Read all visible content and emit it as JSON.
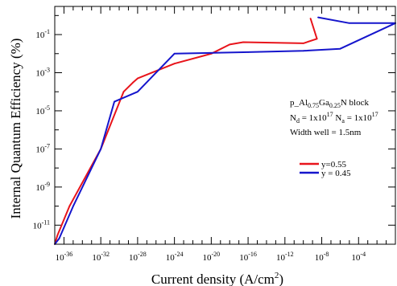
{
  "chart_data": {
    "type": "line",
    "title": "",
    "xlabel": "Current density (A/cm",
    "xlabel_sup": "2",
    "xlabel_close": ")",
    "ylabel": "Internal Quantum Efficiency (%)",
    "x_scale": "log",
    "y_scale": "log",
    "xlim": [
      1e-37,
      1.0
    ],
    "ylim": [
      1e-12,
      3.0
    ],
    "grid": false,
    "x_ticks": [
      {
        "value": 1e-36,
        "base": "10",
        "exp": "-36"
      },
      {
        "value": 1e-32,
        "base": "10",
        "exp": "-32"
      },
      {
        "value": 1e-28,
        "base": "10",
        "exp": "-28"
      },
      {
        "value": 1e-24,
        "base": "10",
        "exp": "-24"
      },
      {
        "value": 1e-20,
        "base": "10",
        "exp": "-20"
      },
      {
        "value": 1e-16,
        "base": "10",
        "exp": "-16"
      },
      {
        "value": 1e-12,
        "base": "10",
        "exp": "-12"
      },
      {
        "value": 1e-08,
        "base": "10",
        "exp": "-8"
      },
      {
        "value": 0.0001,
        "base": "10",
        "exp": "-4"
      }
    ],
    "y_ticks": [
      {
        "value": 1e-11,
        "base": "10",
        "exp": "-11"
      },
      {
        "value": 1e-09,
        "base": "10",
        "exp": "-9"
      },
      {
        "value": 1e-07,
        "base": "10",
        "exp": "-7"
      },
      {
        "value": 1e-05,
        "base": "10",
        "exp": "-5"
      },
      {
        "value": 0.001,
        "base": "10",
        "exp": "-3"
      },
      {
        "value": 0.1,
        "base": "10",
        "exp": "-1"
      }
    ],
    "annotation": {
      "line1": {
        "parts": [
          {
            "text": "p_Al"
          },
          {
            "text": "0.75",
            "sub": true
          },
          {
            "text": "Ga"
          },
          {
            "text": "0.25",
            "sub": true
          },
          {
            "text": "N block"
          }
        ]
      },
      "line2": {
        "parts": [
          {
            "text": "N"
          },
          {
            "text": "d",
            "sub": true
          },
          {
            "text": " = 1x10"
          },
          {
            "text": "17",
            "sup": true
          },
          {
            "text": "  N"
          },
          {
            "text": "a",
            "sub": true
          },
          {
            "text": " = 1x10"
          },
          {
            "text": "17",
            "sup": true
          }
        ]
      },
      "line3": "Width well = 1.5nm"
    },
    "legend_position": "right",
    "series": [
      {
        "name": "y=0.55",
        "color": "#e8141b",
        "points": [
          [
            1e-37,
            1e-12
          ],
          [
            2e-37,
            3e-12
          ],
          [
            4e-36,
            1e-10
          ],
          [
            1e-32,
            1e-07
          ],
          [
            3e-30,
            0.0001
          ],
          [
            3e-29,
            0.0003
          ],
          [
            1e-28,
            0.0005
          ],
          [
            1e-24,
            0.003
          ],
          [
            1e-20,
            0.01
          ],
          [
            1e-18,
            0.03
          ],
          [
            3e-17,
            0.04
          ],
          [
            1e-10,
            0.035
          ],
          [
            3e-09,
            0.06
          ],
          [
            6e-10,
            0.7
          ]
        ]
      },
      {
        "name": "y = 0.45",
        "color": "#1515cc",
        "points": [
          [
            1e-37,
            1e-12
          ],
          [
            3e-37,
            2e-12
          ],
          [
            1e-35,
            1e-10
          ],
          [
            1e-32,
            1e-07
          ],
          [
            3e-31,
            3e-05
          ],
          [
            1e-28,
            0.0001
          ],
          [
            1e-24,
            0.01
          ],
          [
            1e-16,
            0.012
          ],
          [
            1e-10,
            0.014
          ],
          [
            1e-06,
            0.018
          ],
          [
            1.0,
            0.4
          ],
          [
            1e-05,
            0.4
          ],
          [
            4e-09,
            0.8
          ]
        ]
      }
    ]
  }
}
